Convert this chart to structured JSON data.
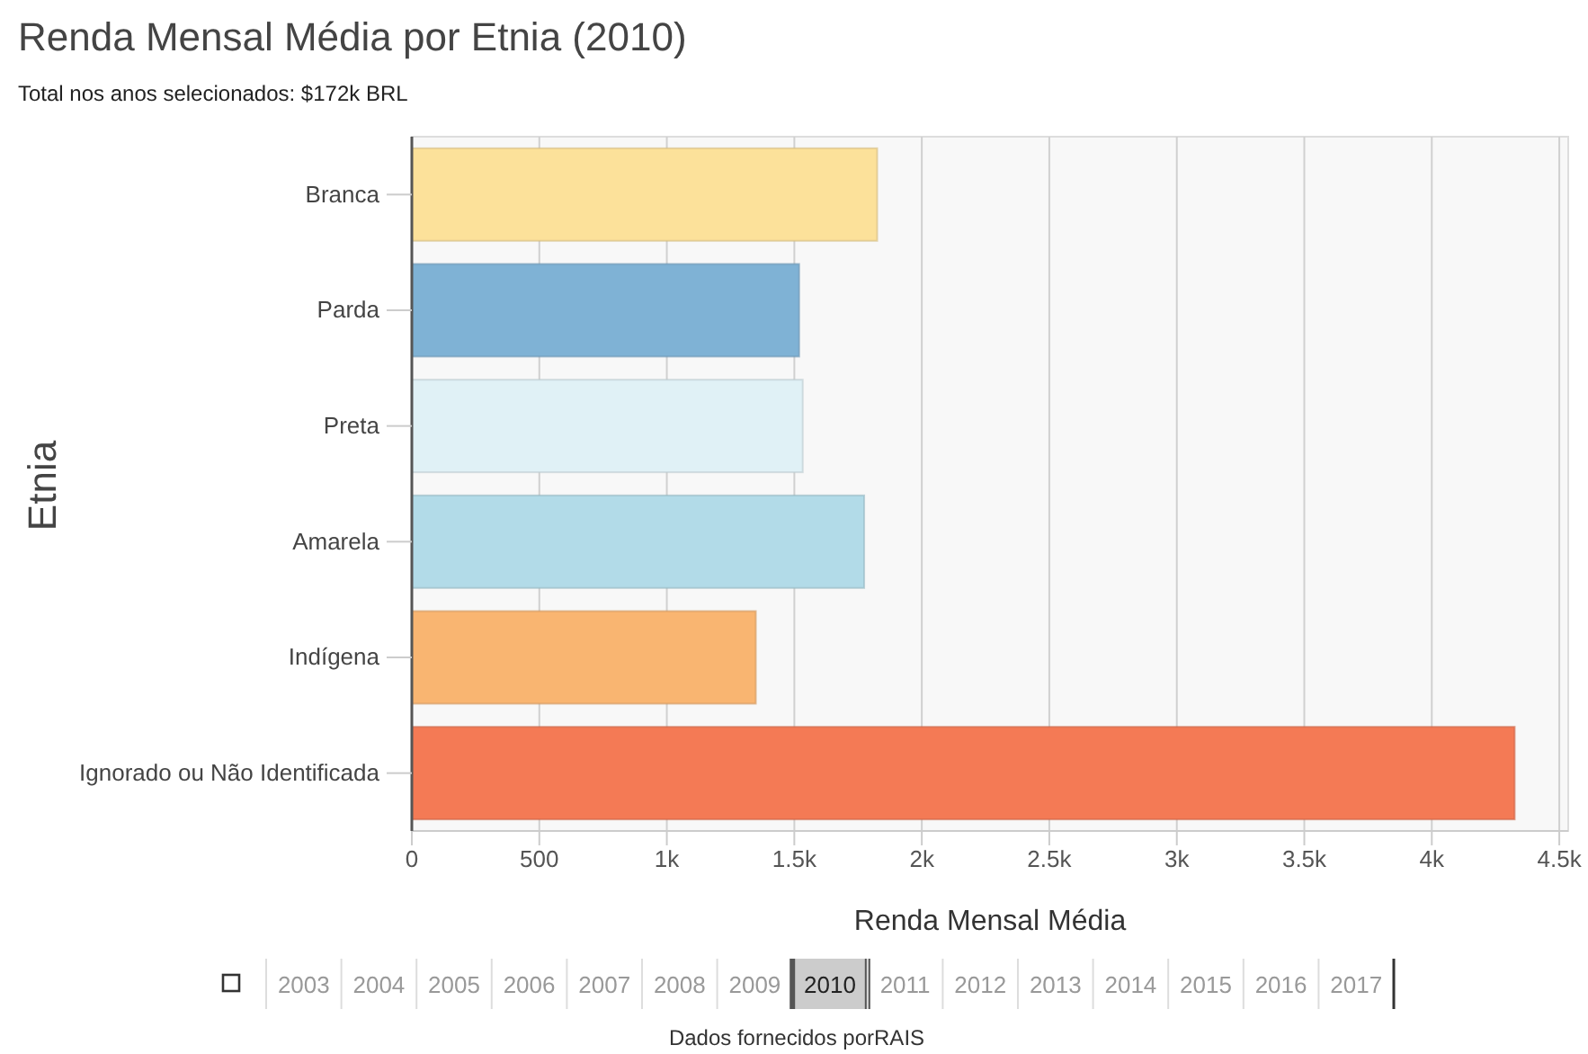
{
  "chart_data": {
    "type": "bar",
    "orientation": "horizontal",
    "title": "Renda Mensal Média por Etnia (2010)",
    "subtitle": "Total nos anos selecionados: $172k BRL",
    "xlabel": "Renda Mensal Média",
    "ylabel": "Etnia",
    "categories": [
      "Branca",
      "Parda",
      "Preta",
      "Amarela",
      "Indígena",
      "Ignorado ou Não Identificada"
    ],
    "values": [
      1825,
      1519,
      1533,
      1774,
      1349,
      4325
    ],
    "colors": [
      "#fce19a",
      "#7fb2d5",
      "#e0f1f6",
      "#b2dbe8",
      "#f9b571",
      "#f47a55"
    ],
    "xlim": [
      0,
      4535
    ],
    "xticks": [
      0,
      500,
      {
        "value": 1000,
        "label": "1k"
      },
      {
        "value": 1500,
        "label": "1.5k"
      },
      {
        "value": 2000,
        "label": "2k"
      },
      {
        "value": 2500,
        "label": "2.5k"
      },
      {
        "value": 3000,
        "label": "3k"
      },
      {
        "value": 3500,
        "label": "3.5k"
      },
      {
        "value": 4000,
        "label": "4k"
      },
      {
        "value": 4500,
        "label": "4.5k"
      }
    ],
    "grid": "x",
    "annotations": [
      "2003",
      "2004",
      "2005",
      "2006",
      "2007",
      "2008",
      "2009",
      "2010",
      "2011",
      "2012",
      "2013",
      "2014",
      "2015",
      "2016",
      "2017",
      "Dados fornecidos porRAIS"
    ]
  }
}
